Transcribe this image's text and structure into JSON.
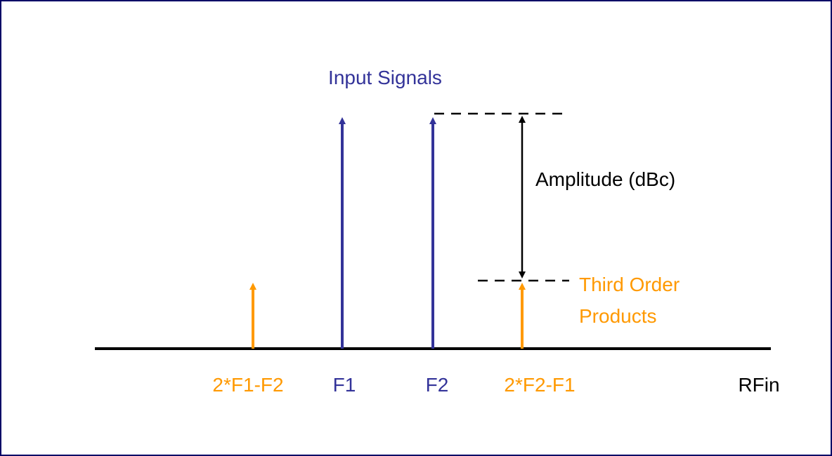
{
  "title": "Input Signals",
  "amplitude_label": "Amplitude (dBc)",
  "products_label": [
    "Third Order",
    "Products"
  ],
  "axis_labels": [
    "2*F1-F2",
    "F1",
    "F2",
    "2*F2-F1",
    "RFin"
  ]
}
